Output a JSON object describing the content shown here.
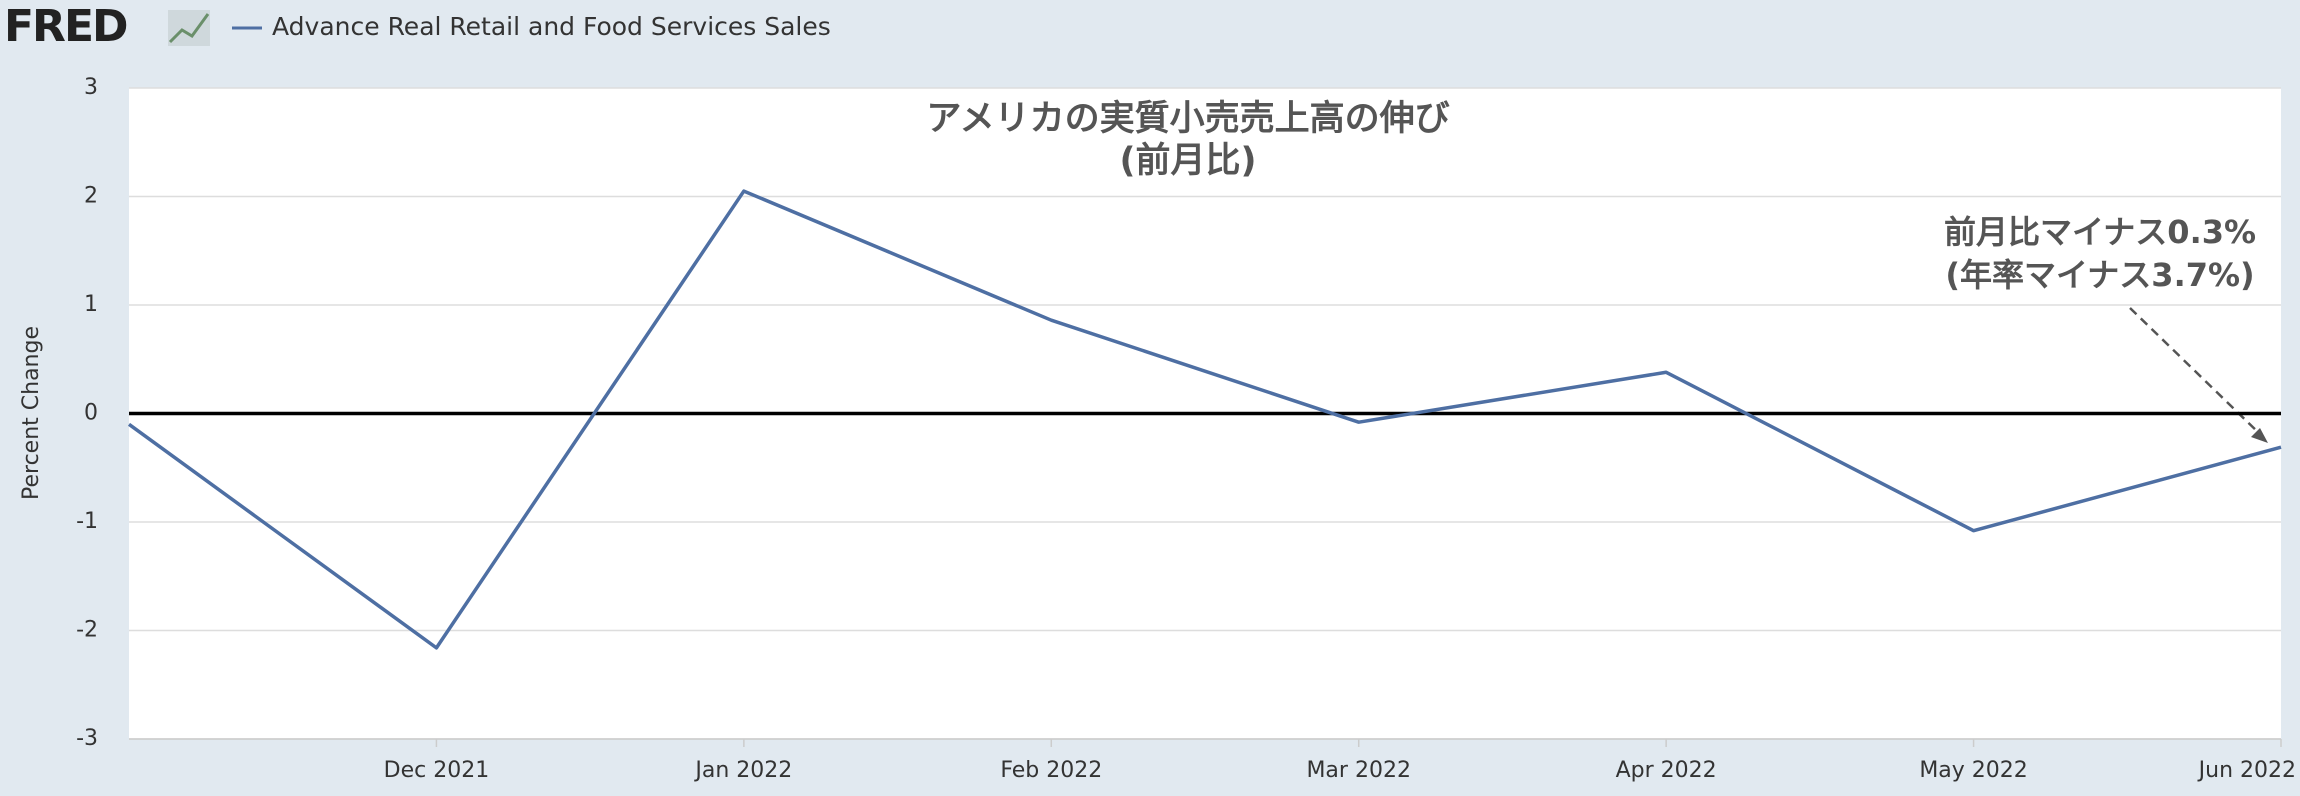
{
  "logo": "FRED",
  "chart_data": {
    "type": "line",
    "title": "アメリカの実質小売売上高の伸び",
    "subtitle": "(前月比)",
    "y_label": "Percent Change",
    "annotation": [
      "前月比マイナス0.3%",
      "(年率マイナス3.7%)"
    ],
    "categories": [
      null,
      "Dec 2021",
      "Jan 2022",
      "Feb 2022",
      "Mar 2022",
      "Apr 2022",
      "May 2022",
      "Jun 2022"
    ],
    "series": [
      {
        "name": "Advance Real Retail and Food Services Sales",
        "color": "#4e6fa3",
        "values": [
          -0.1,
          -2.16,
          2.05,
          0.86,
          -0.08,
          0.38,
          -1.08,
          -0.31
        ]
      }
    ],
    "ylim": [
      -3,
      3
    ],
    "yticks": [
      -3,
      -2,
      -1,
      0,
      1,
      2,
      3
    ],
    "grid": true,
    "zero_line": true
  }
}
